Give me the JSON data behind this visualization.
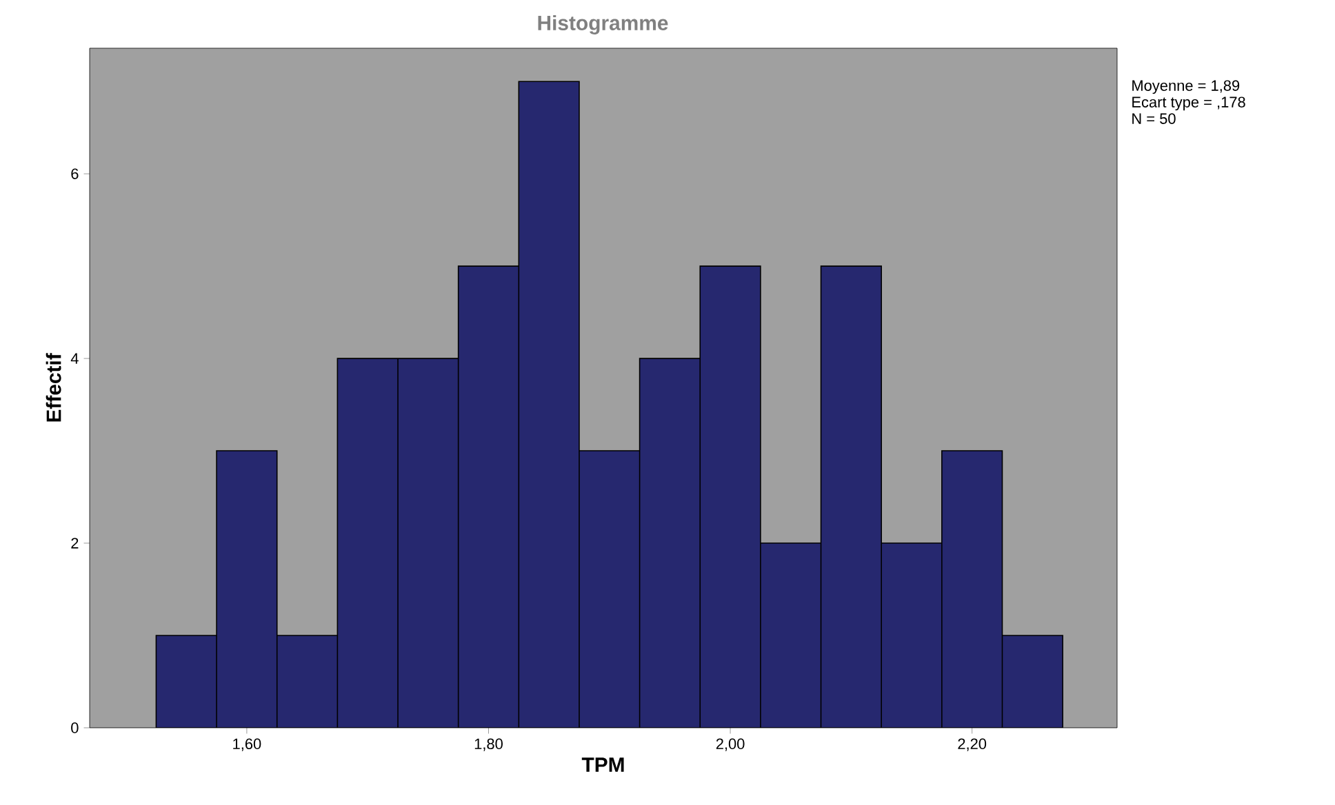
{
  "chart_data": {
    "type": "histogram",
    "title": "Histogramme",
    "xlabel": "TPM",
    "ylabel": "Effectif",
    "bins": [
      1.525,
      1.575,
      1.625,
      1.675,
      1.725,
      1.775,
      1.825,
      1.875,
      1.925,
      1.975,
      2.025,
      2.075,
      2.125,
      2.175,
      2.225,
      2.275
    ],
    "values": [
      1,
      3,
      1,
      4,
      4,
      5,
      7,
      3,
      4,
      5,
      2,
      5,
      2,
      3,
      1
    ],
    "color": "#26286f",
    "xlim": [
      1.47,
      2.32
    ],
    "ylim": [
      0,
      7.36
    ],
    "xticks": [
      {
        "value": 1.6,
        "label": "1,60"
      },
      {
        "value": 1.8,
        "label": "1,80"
      },
      {
        "value": 2.0,
        "label": "2,00"
      },
      {
        "value": 2.2,
        "label": "2,20"
      }
    ],
    "yticks": [
      0,
      2,
      4,
      6
    ],
    "annotations": [
      "Moyenne = 1,89",
      "Ecart type = ,178",
      "N = 50"
    ]
  }
}
